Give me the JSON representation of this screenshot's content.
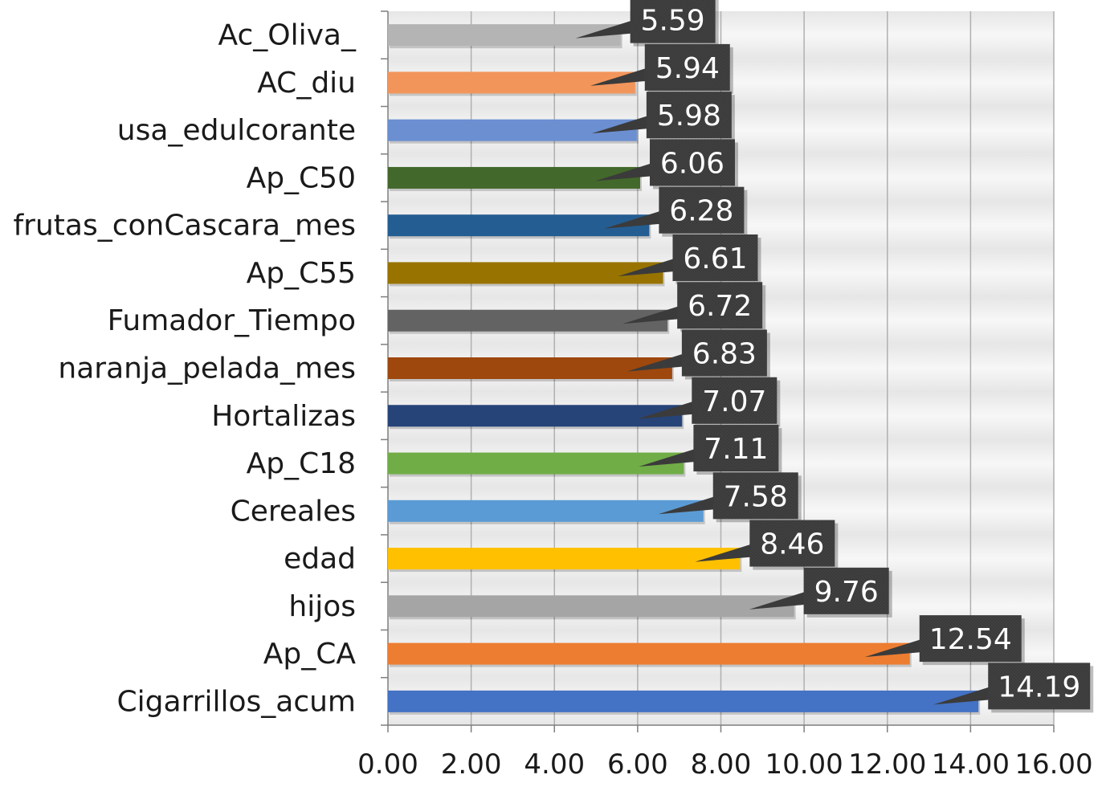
{
  "chart_data": {
    "type": "bar",
    "orientation": "horizontal",
    "title": "",
    "xlabel": "",
    "ylabel": "",
    "xlim": [
      0,
      16
    ],
    "x_ticks": [
      0,
      2,
      4,
      6,
      8,
      10,
      12,
      14,
      16
    ],
    "x_tick_labels": [
      "0.00",
      "2.00",
      "4.00",
      "6.00",
      "8.00",
      "10.00",
      "12.00",
      "14.00",
      "16.00"
    ],
    "grid": true,
    "legend": "none",
    "data_labels": true,
    "categories": [
      "Ac_Oliva_",
      "AC_diu",
      "usa_edulcorante",
      "Ap_C50",
      "frutas_conCascara_mes",
      "Ap_C55",
      "Fumador_Tiempo",
      "naranja_pelada_mes",
      "Hortalizas",
      "Ap_C18",
      "Cereales",
      "edad",
      "hijos",
      "Ap_CA",
      "Cigarrillos_acum"
    ],
    "values": [
      5.59,
      5.94,
      5.98,
      6.06,
      6.28,
      6.61,
      6.72,
      6.83,
      7.07,
      7.11,
      7.58,
      8.46,
      9.76,
      12.54,
      14.19
    ],
    "value_labels": [
      "5.59",
      "5.94",
      "5.98",
      "6.06",
      "6.28",
      "6.61",
      "6.72",
      "6.83",
      "7.07",
      "7.11",
      "7.58",
      "8.46",
      "9.76",
      "12.54",
      "14.19"
    ],
    "colors": [
      "#b4b4b4",
      "#f2955b",
      "#6b8fd1",
      "#43682b",
      "#245d92",
      "#987300",
      "#636363",
      "#9e480e",
      "#264478",
      "#70ad47",
      "#5b9bd5",
      "#ffc000",
      "#a5a5a5",
      "#ed7d31",
      "#4472c4"
    ],
    "callout_color": "#3b3b3b"
  }
}
